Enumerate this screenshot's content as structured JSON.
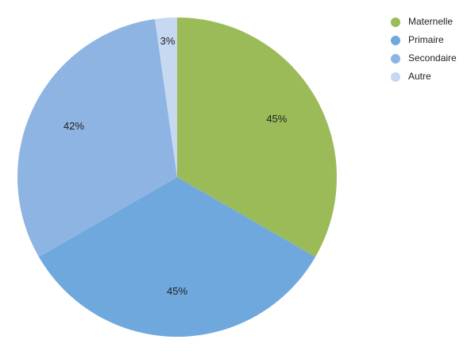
{
  "chart_data": {
    "type": "pie",
    "categories": [
      "Maternelle",
      "Primaire",
      "Secondaire",
      "Autre"
    ],
    "values": [
      45,
      45,
      42,
      3
    ],
    "value_labels": [
      "45%",
      "45%",
      "42%",
      "3%"
    ],
    "colors": [
      "#9bbb59",
      "#6fa8dc",
      "#8eb4e3",
      "#c6d9f1"
    ],
    "legend": "top-right"
  }
}
